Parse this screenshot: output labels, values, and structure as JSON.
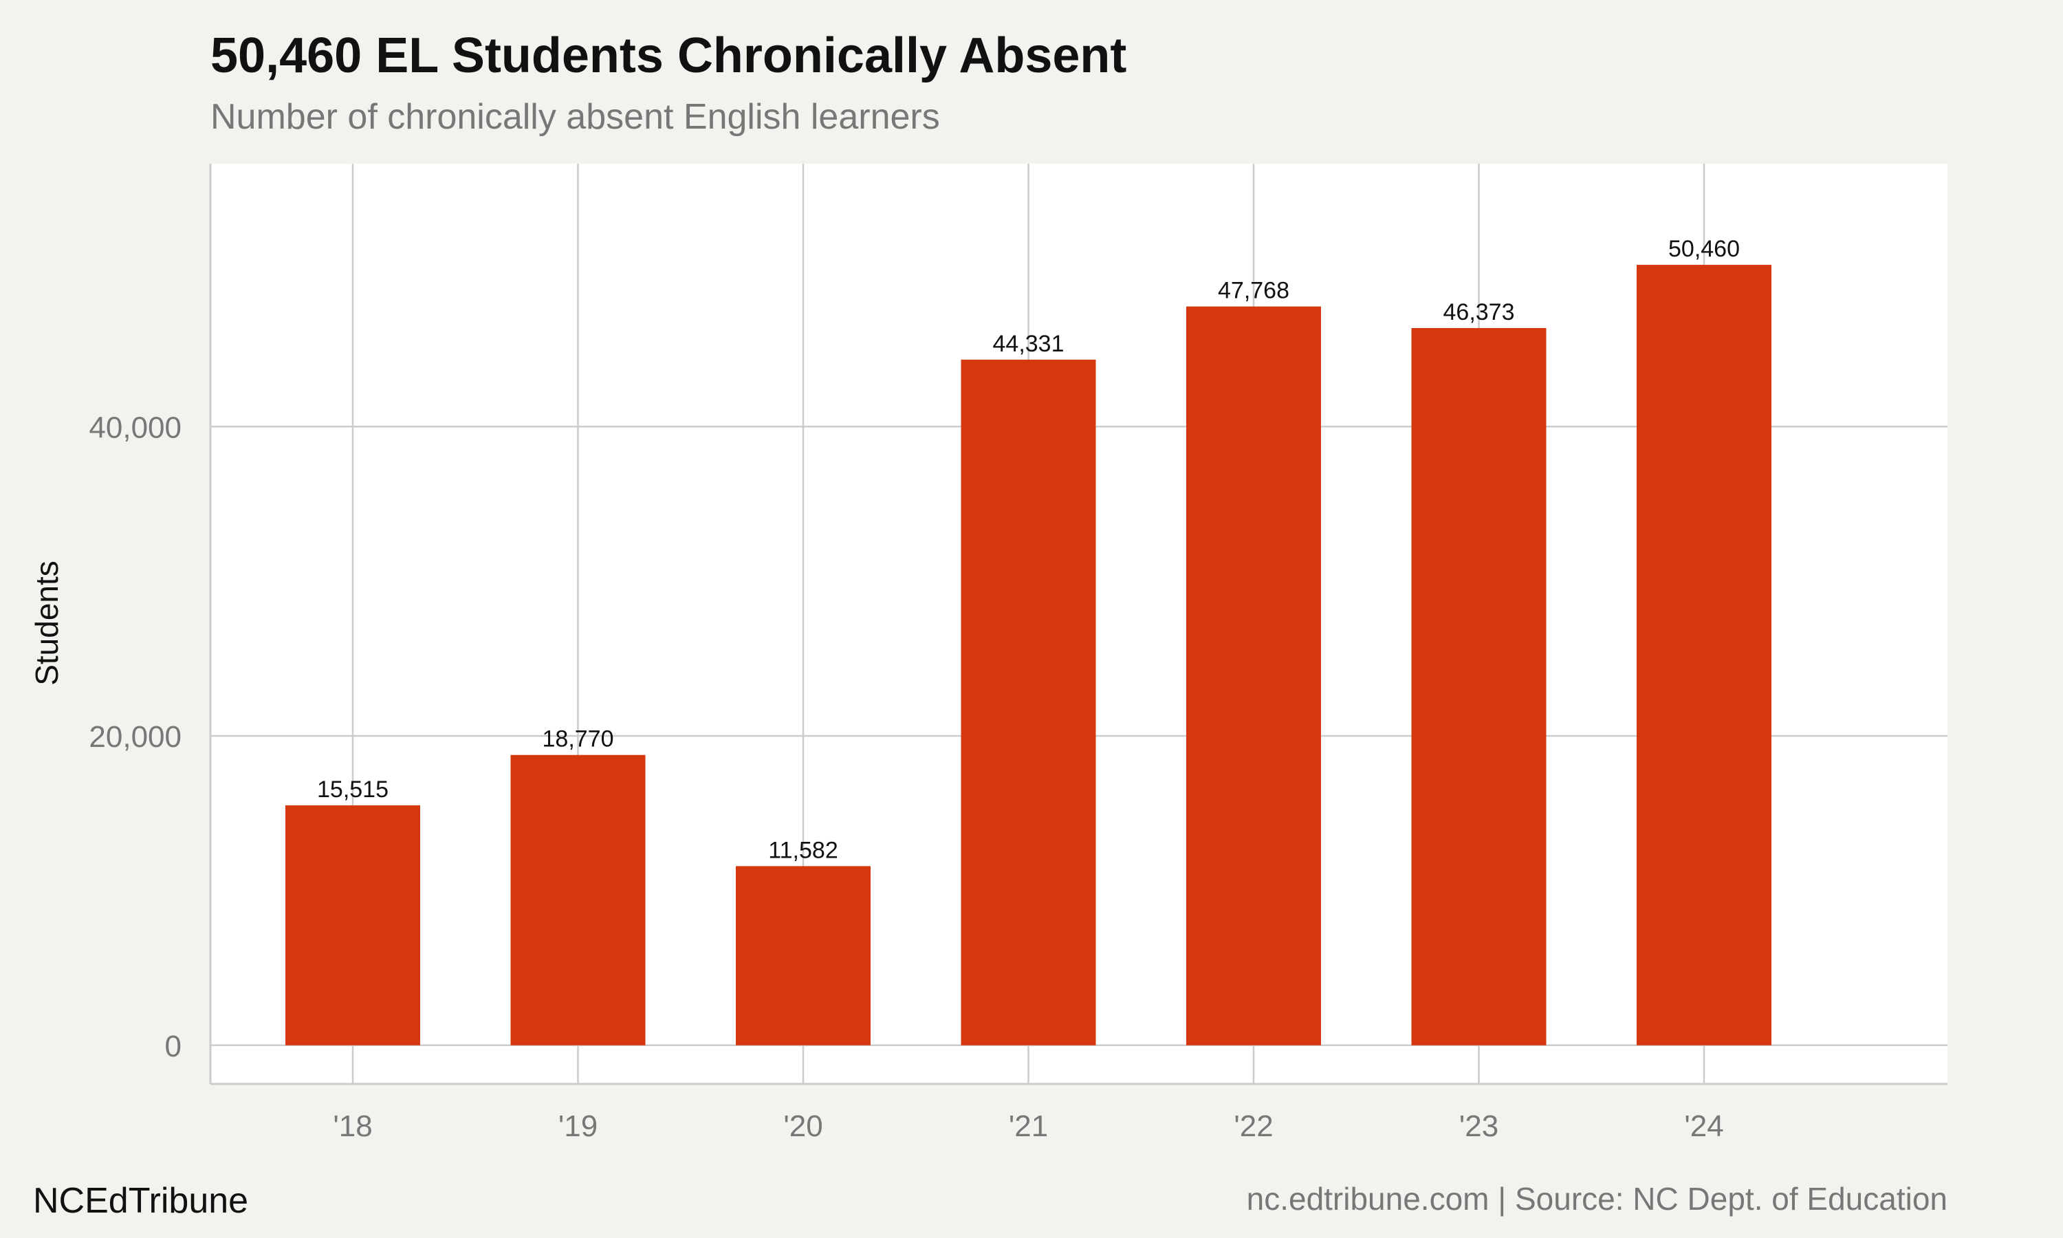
{
  "title": "50,460 EL Students Chronically Absent",
  "subtitle": "Number of chronically absent English learners",
  "footer": {
    "brand": "NCEdTribune",
    "source": "nc.edtribune.com | Source: NC Dept. of Education"
  },
  "colors": {
    "bar": "#d5380f",
    "panel": "#ffffff",
    "background": "#f4f2ee",
    "grid": "#cccccc",
    "axis_text": "#777777",
    "label_text": "#111111"
  },
  "chart_data": {
    "type": "bar",
    "categories": [
      "'18",
      "'19",
      "'20",
      "'21",
      "'22",
      "'23",
      "'24"
    ],
    "values": [
      15515,
      18770,
      11582,
      44331,
      47768,
      46373,
      50460
    ],
    "value_labels": [
      "15,515",
      "18,770",
      "11,582",
      "44,331",
      "47,768",
      "46,373",
      "50,460"
    ],
    "ylabel": "Students",
    "xlabel": "",
    "yticks": [
      0,
      20000,
      40000
    ],
    "ytick_labels": [
      "0",
      "20,000",
      "40,000"
    ],
    "ylim": [
      -2500,
      57000
    ],
    "grid": true,
    "legend": "none"
  }
}
